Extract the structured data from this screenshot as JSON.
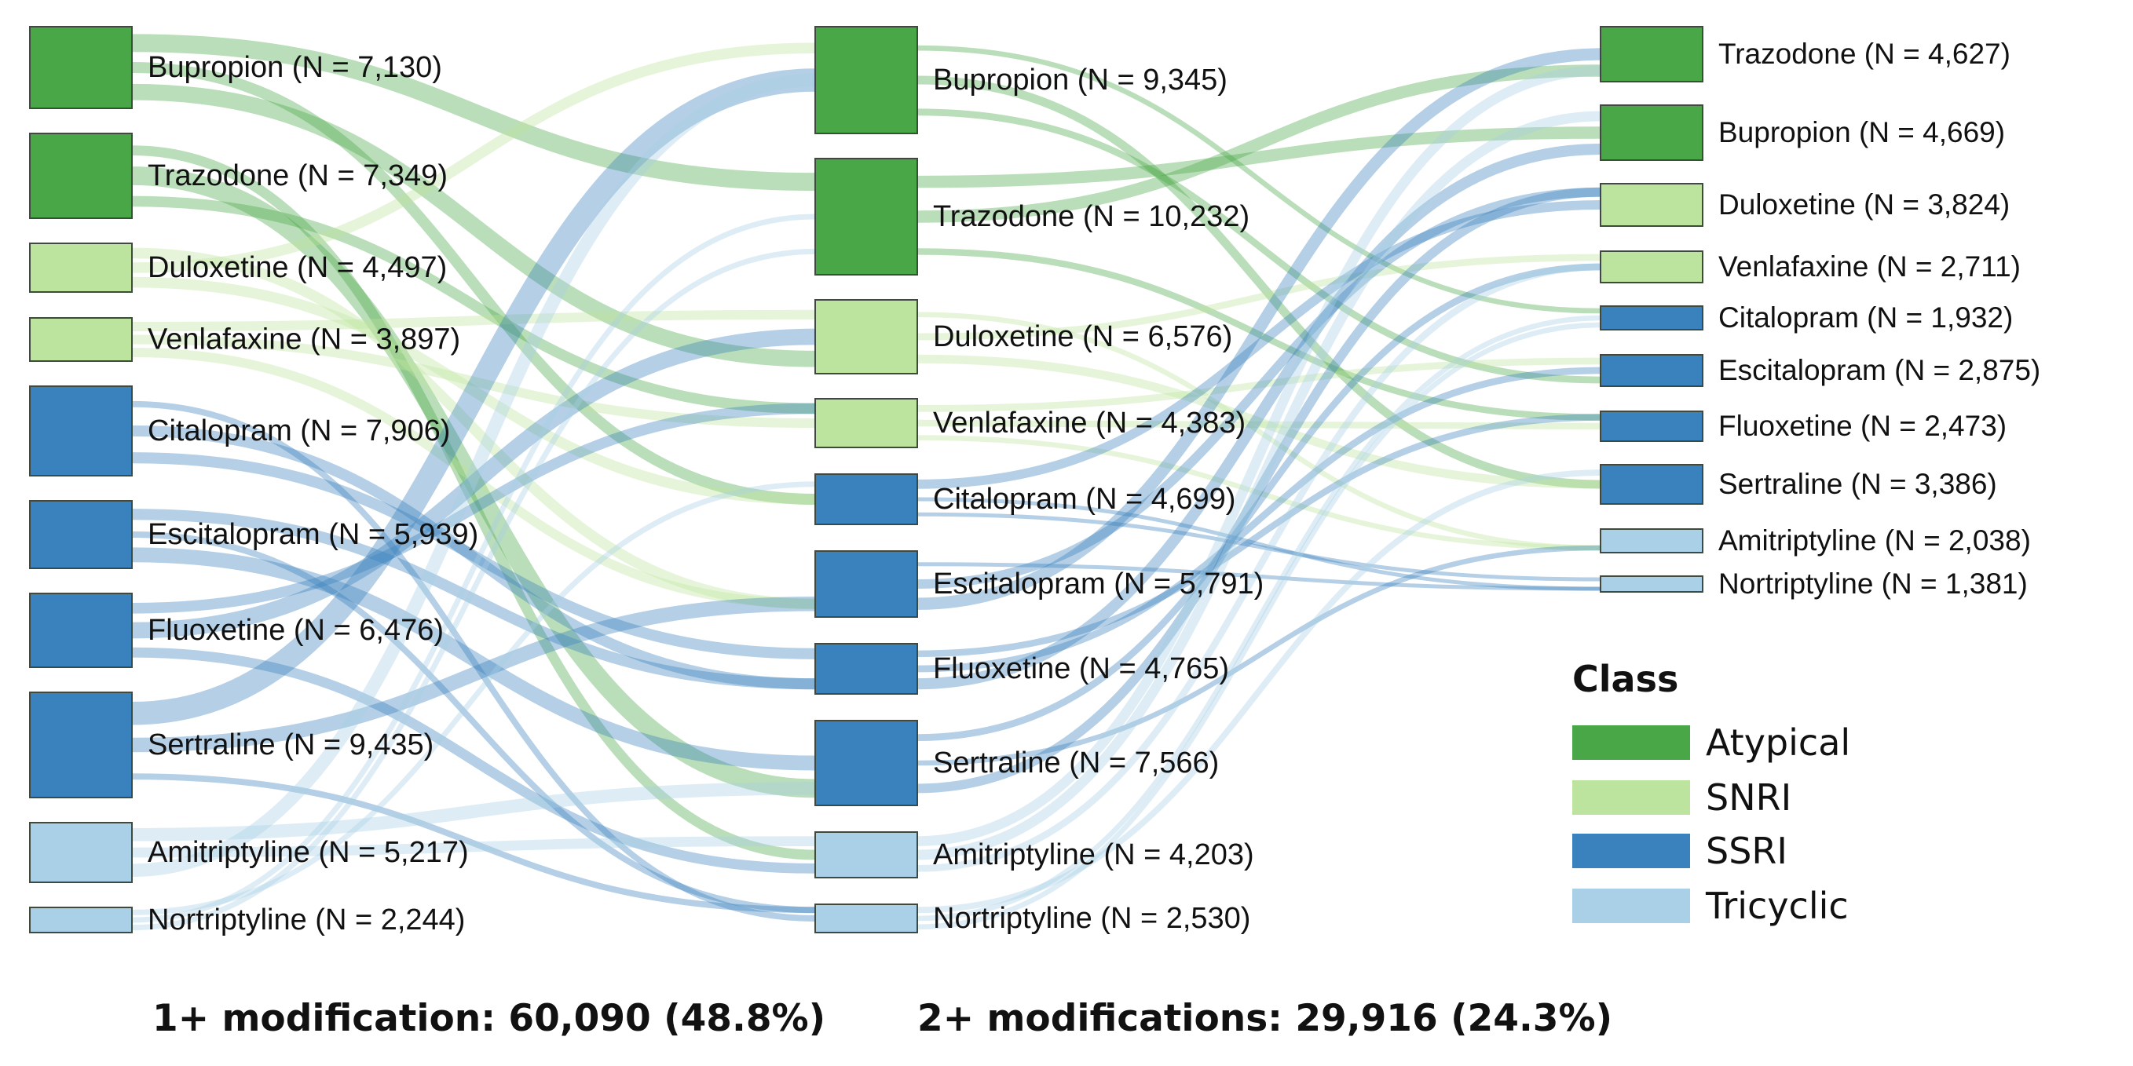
{
  "colors": {
    "Atypical": "#4aa748",
    "SNRI": "#bde49f",
    "SSRI": "#3a82bd",
    "Tricyclic": "#a9d0e6",
    "stroke": "#3d4a3d"
  },
  "columns": [
    {
      "caption": "1+ modification: 60,090 (48.8%)",
      "nodes": [
        {
          "label": "Bupropion (N = 7,130)",
          "class": "Atypical"
        },
        {
          "label": "Trazodone (N = 7,349)",
          "class": "Atypical"
        },
        {
          "label": "Duloxetine (N = 4,497)",
          "class": "SNRI"
        },
        {
          "label": "Venlafaxine (N = 3,897)",
          "class": "SNRI"
        },
        {
          "label": "Citalopram (N = 7,906)",
          "class": "SSRI"
        },
        {
          "label": "Escitalopram (N = 5,939)",
          "class": "SSRI"
        },
        {
          "label": "Fluoxetine (N = 6,476)",
          "class": "SSRI"
        },
        {
          "label": "Sertraline (N = 9,435)",
          "class": "SSRI"
        },
        {
          "label": "Amitriptyline (N = 5,217)",
          "class": "Tricyclic"
        },
        {
          "label": "Nortriptyline (N = 2,244)",
          "class": "Tricyclic"
        }
      ]
    },
    {
      "caption": "2+ modifications: 29,916 (24.3%)",
      "nodes": [
        {
          "label": "Bupropion (N = 9,345)",
          "class": "Atypical"
        },
        {
          "label": "Trazodone (N = 10,232)",
          "class": "Atypical"
        },
        {
          "label": "Duloxetine (N = 6,576)",
          "class": "SNRI"
        },
        {
          "label": "Venlafaxine (N = 4,383)",
          "class": "SNRI"
        },
        {
          "label": "Citalopram (N = 4,699)",
          "class": "SSRI"
        },
        {
          "label": "Escitalopram (N = 5,791)",
          "class": "SSRI"
        },
        {
          "label": "Fluoxetine (N = 4,765)",
          "class": "SSRI"
        },
        {
          "label": "Sertraline (N = 7,566)",
          "class": "SSRI"
        },
        {
          "label": "Amitriptyline (N = 4,203)",
          "class": "Tricyclic"
        },
        {
          "label": "Nortriptyline (N = 2,530)",
          "class": "Tricyclic"
        }
      ]
    },
    {
      "caption": "",
      "nodes": [
        {
          "label": "Trazodone (N = 4,627)",
          "class": "Atypical"
        },
        {
          "label": "Bupropion (N = 4,669)",
          "class": "Atypical"
        },
        {
          "label": "Duloxetine (N = 3,824)",
          "class": "SNRI"
        },
        {
          "label": "Venlafaxine (N = 2,711)",
          "class": "SNRI"
        },
        {
          "label": "Citalopram (N = 1,932)",
          "class": "SSRI"
        },
        {
          "label": "Escitalopram (N = 2,875)",
          "class": "SSRI"
        },
        {
          "label": "Fluoxetine (N = 2,473)",
          "class": "SSRI"
        },
        {
          "label": "Sertraline (N = 3,386)",
          "class": "SSRI"
        },
        {
          "label": "Amitriptyline (N = 2,038)",
          "class": "Tricyclic"
        },
        {
          "label": "Nortriptyline (N = 1,381)",
          "class": "Tricyclic"
        }
      ]
    }
  ],
  "legend": {
    "title": "Class",
    "items": [
      {
        "label": "Atypical",
        "class": "Atypical"
      },
      {
        "label": "SNRI",
        "class": "SNRI"
      },
      {
        "label": "SSRI",
        "class": "SSRI"
      },
      {
        "label": "Tricyclic",
        "class": "Tricyclic"
      }
    ]
  }
}
